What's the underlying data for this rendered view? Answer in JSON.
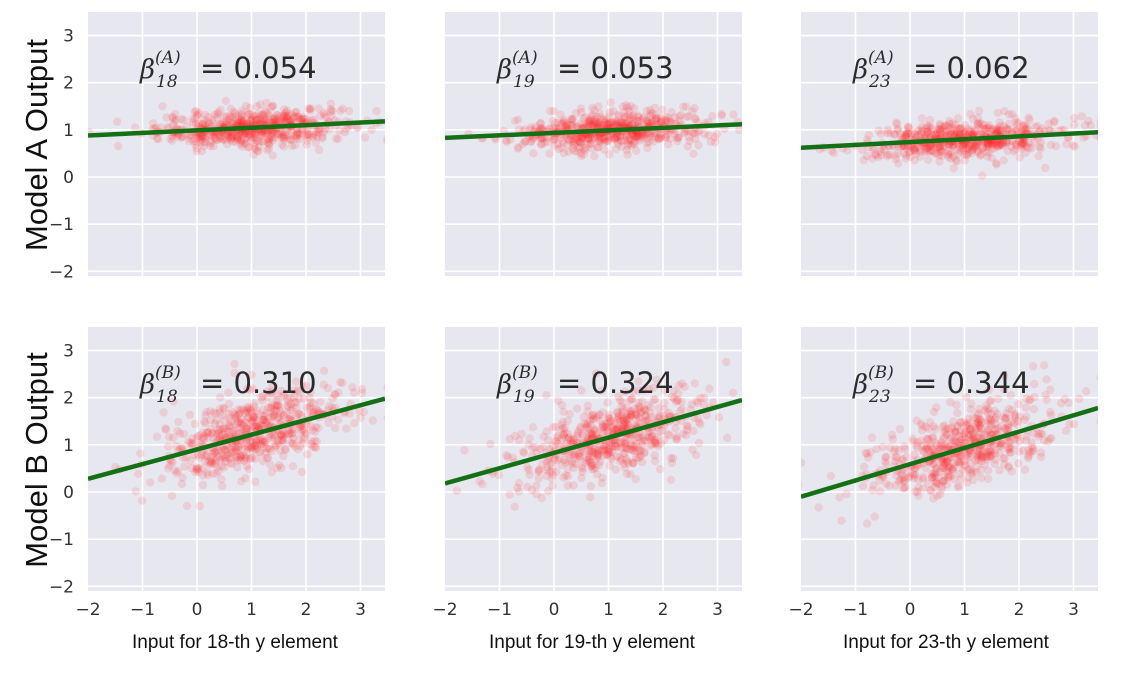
{
  "chart_data": {
    "type": "scatter",
    "xlim": [
      -2.0,
      3.45
    ],
    "ylim": [
      -2.1,
      3.5
    ],
    "xticks": [
      -2,
      -1,
      0,
      1,
      2,
      3
    ],
    "yticks": [
      -2,
      -1,
      0,
      1,
      2,
      3
    ],
    "grid": true,
    "colors": {
      "points": "#ff2a2a",
      "line": "#147014",
      "panel_bg": "#e7e7f0",
      "grid": "#ffffff"
    },
    "row_labels": [
      "Model A Output",
      "Model B Output"
    ],
    "column_xlabels": [
      "Input for 18-th y element",
      "Input for 19-th y element",
      "Input for 23-th y element"
    ],
    "panels": [
      {
        "row": 0,
        "col": 0,
        "annotation": {
          "symbol": "β",
          "subscript": "18",
          "superscript": "(A)",
          "value": "0.054"
        },
        "fit": {
          "x": [
            -2.0,
            3.45
          ],
          "y": [
            0.88,
            1.18
          ]
        },
        "cloud": {
          "x_mean": 1.0,
          "x_sd": 0.85,
          "y_noise_sd": 0.2,
          "n": 600
        }
      },
      {
        "row": 0,
        "col": 1,
        "annotation": {
          "symbol": "β",
          "subscript": "19",
          "superscript": "(A)",
          "value": "0.053"
        },
        "fit": {
          "x": [
            -2.0,
            3.45
          ],
          "y": [
            0.83,
            1.12
          ]
        },
        "cloud": {
          "x_mean": 1.05,
          "x_sd": 0.85,
          "y_noise_sd": 0.2,
          "n": 600
        }
      },
      {
        "row": 0,
        "col": 2,
        "annotation": {
          "symbol": "β",
          "subscript": "23",
          "superscript": "(A)",
          "value": "0.062"
        },
        "fit": {
          "x": [
            -2.0,
            3.45
          ],
          "y": [
            0.62,
            0.95
          ]
        },
        "cloud": {
          "x_mean": 1.0,
          "x_sd": 0.85,
          "y_noise_sd": 0.2,
          "n": 600
        }
      },
      {
        "row": 1,
        "col": 0,
        "annotation": {
          "symbol": "β",
          "subscript": "18",
          "superscript": "(B)",
          "value": "0.310"
        },
        "fit": {
          "x": [
            -2.0,
            3.45
          ],
          "y": [
            0.28,
            1.98
          ]
        },
        "cloud": {
          "x_mean": 1.0,
          "x_sd": 0.85,
          "y_noise_sd": 0.42,
          "n": 600
        }
      },
      {
        "row": 1,
        "col": 1,
        "annotation": {
          "symbol": "β",
          "subscript": "19",
          "superscript": "(B)",
          "value": "0.324"
        },
        "fit": {
          "x": [
            -2.0,
            3.45
          ],
          "y": [
            0.18,
            1.95
          ]
        },
        "cloud": {
          "x_mean": 1.05,
          "x_sd": 0.85,
          "y_noise_sd": 0.42,
          "n": 600
        }
      },
      {
        "row": 1,
        "col": 2,
        "annotation": {
          "symbol": "β",
          "subscript": "23",
          "superscript": "(B)",
          "value": "0.344"
        },
        "fit": {
          "x": [
            -2.0,
            3.45
          ],
          "y": [
            -0.1,
            1.78
          ]
        },
        "cloud": {
          "x_mean": 1.0,
          "x_sd": 0.85,
          "y_noise_sd": 0.42,
          "n": 600
        }
      }
    ]
  }
}
